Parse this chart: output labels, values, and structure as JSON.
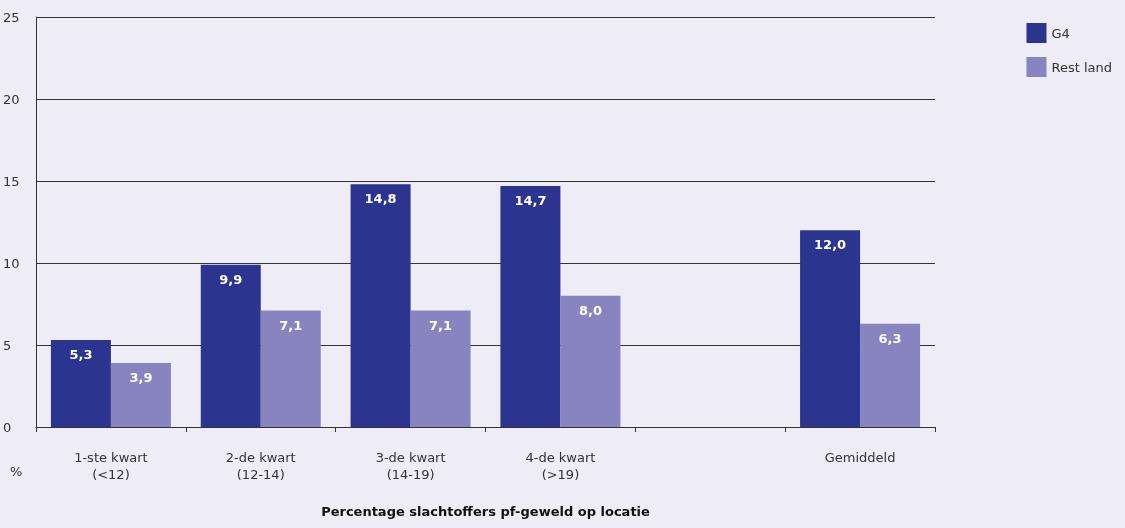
{
  "chart_data": {
    "type": "bar",
    "xlabel": "Percentage slachtoffers pf-geweld op locatie",
    "ylabel": "%",
    "categories": [
      "1-ste kwart\n(<12)",
      "2-de kwart\n(12-14)",
      "3-de kwart\n(14-19)",
      "4-de kwart\n(>19)",
      null,
      "Gemiddeld"
    ],
    "series": [
      {
        "name": "G4",
        "color": "#2b3590",
        "values": [
          5.3,
          9.9,
          14.8,
          14.7,
          null,
          12.0
        ],
        "value_labels": [
          "5,3",
          "9,9",
          "14,8",
          "14,7",
          null,
          "12,0"
        ]
      },
      {
        "name": "Rest land",
        "color": "#8784c0",
        "values": [
          3.9,
          7.1,
          7.1,
          8.0,
          null,
          6.3
        ],
        "value_labels": [
          "3,9",
          "7,1",
          "7,1",
          "8,0",
          null,
          "6,3"
        ]
      }
    ],
    "ylim": [
      0,
      25
    ],
    "yticks": [
      0,
      5,
      10,
      15,
      20,
      25
    ],
    "grid": "y",
    "legend": "top right"
  }
}
